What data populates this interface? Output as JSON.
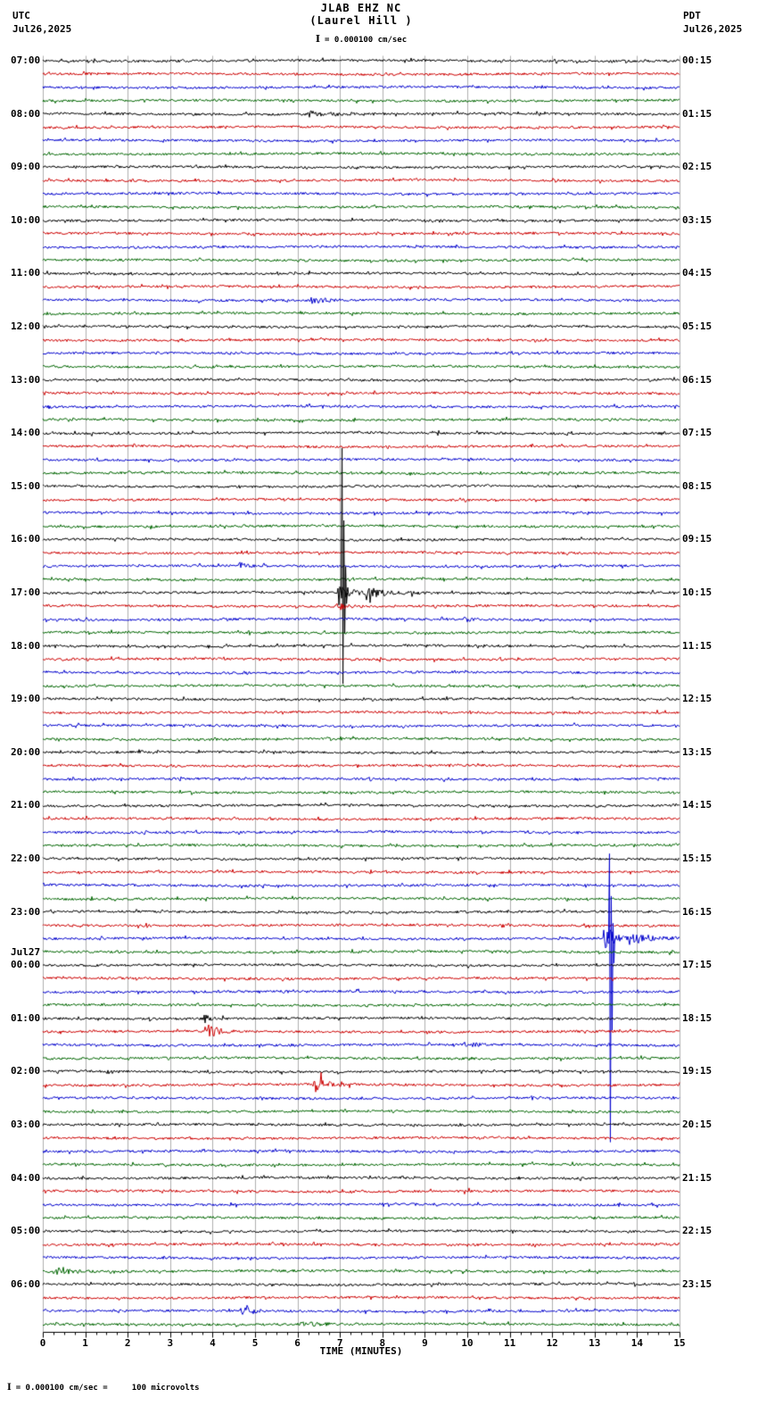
{
  "header": {
    "title": "JLAB EHZ NC",
    "subtitle": "(Laurel Hill )",
    "scale_label": "= 0.000100 cm/sec",
    "left_tz": "UTC",
    "left_date": "Jul26,2025",
    "right_tz": "PDT",
    "right_date": "Jul26,2025"
  },
  "footer": {
    "calibration": "= 0.000100 cm/sec =     100 microvolts"
  },
  "icons": {
    "scale_bar_glyph": "I"
  },
  "chart_data": {
    "type": "line",
    "subtype": "seismogram-helicorder",
    "station": "JLAB EHZ NC",
    "station_location": "(Laurel Hill )",
    "xlabel": "TIME (MINUTES)",
    "x_min": 0,
    "x_max": 15,
    "x_ticks": [
      "0",
      "1",
      "2",
      "3",
      "4",
      "5",
      "6",
      "7",
      "8",
      "9",
      "10",
      "11",
      "12",
      "13",
      "14",
      "15"
    ],
    "rows": 96,
    "minutes_per_row": 15,
    "grid": true,
    "grid_color": "#9a9a9a",
    "trace_colors": [
      "#000000",
      "#cc0000",
      "#0000cc",
      "#006600"
    ],
    "noise_amp": 1.3,
    "left_labels": [
      {
        "row": 0,
        "label": "07:00"
      },
      {
        "row": 4,
        "label": "08:00"
      },
      {
        "row": 8,
        "label": "09:00"
      },
      {
        "row": 12,
        "label": "10:00"
      },
      {
        "row": 16,
        "label": "11:00"
      },
      {
        "row": 20,
        "label": "12:00"
      },
      {
        "row": 24,
        "label": "13:00"
      },
      {
        "row": 28,
        "label": "14:00"
      },
      {
        "row": 32,
        "label": "15:00"
      },
      {
        "row": 36,
        "label": "16:00"
      },
      {
        "row": 40,
        "label": "17:00"
      },
      {
        "row": 44,
        "label": "18:00"
      },
      {
        "row": 48,
        "label": "19:00"
      },
      {
        "row": 52,
        "label": "20:00"
      },
      {
        "row": 56,
        "label": "21:00"
      },
      {
        "row": 60,
        "label": "22:00"
      },
      {
        "row": 64,
        "label": "23:00"
      },
      {
        "row": 68,
        "label": "00:00",
        "prefix": "Jul27"
      },
      {
        "row": 72,
        "label": "01:00"
      },
      {
        "row": 76,
        "label": "02:00"
      },
      {
        "row": 80,
        "label": "03:00"
      },
      {
        "row": 84,
        "label": "04:00"
      },
      {
        "row": 88,
        "label": "05:00"
      },
      {
        "row": 92,
        "label": "06:00"
      }
    ],
    "right_labels": [
      {
        "row": 0,
        "label": "00:15"
      },
      {
        "row": 4,
        "label": "01:15"
      },
      {
        "row": 8,
        "label": "02:15"
      },
      {
        "row": 12,
        "label": "03:15"
      },
      {
        "row": 16,
        "label": "04:15"
      },
      {
        "row": 20,
        "label": "05:15"
      },
      {
        "row": 24,
        "label": "06:15"
      },
      {
        "row": 28,
        "label": "07:15"
      },
      {
        "row": 32,
        "label": "08:15"
      },
      {
        "row": 36,
        "label": "09:15"
      },
      {
        "row": 40,
        "label": "10:15"
      },
      {
        "row": 44,
        "label": "11:15"
      },
      {
        "row": 48,
        "label": "12:15"
      },
      {
        "row": 52,
        "label": "13:15"
      },
      {
        "row": 56,
        "label": "14:15"
      },
      {
        "row": 60,
        "label": "15:15"
      },
      {
        "row": 64,
        "label": "16:15"
      },
      {
        "row": 68,
        "label": "17:15"
      },
      {
        "row": 72,
        "label": "18:15"
      },
      {
        "row": 76,
        "label": "19:15"
      },
      {
        "row": 80,
        "label": "20:15"
      },
      {
        "row": 84,
        "label": "21:15"
      },
      {
        "row": 88,
        "label": "22:15"
      },
      {
        "row": 92,
        "label": "23:15"
      }
    ],
    "events": [
      {
        "row": 4,
        "start_min": 6.2,
        "dur_min": 1.3,
        "amp": 4,
        "desc": "small burst on 08:00 UTC trace"
      },
      {
        "row": 18,
        "start_min": 6.3,
        "dur_min": 0.9,
        "amp": 5,
        "desc": "small burst on 11:30 UTC trace"
      },
      {
        "row": 38,
        "start_min": 4.6,
        "dur_min": 0.8,
        "amp": 3.5,
        "desc": "small burst on 16:30 UTC trace"
      },
      {
        "row": 40,
        "start_min": 6.95,
        "dur_min": 0.6,
        "amp": 22,
        "spike": {
          "min": 7.05,
          "up": 162,
          "down": 102
        },
        "desc": "large event ~17:07 UTC, clipped spike spans adjacent rows"
      },
      {
        "row": 40,
        "start_min": 7.55,
        "dur_min": 1.6,
        "amp": 7,
        "desc": "coda of large 17:07 event"
      },
      {
        "row": 41,
        "start_min": 6.9,
        "dur_min": 0.8,
        "amp": 4.5,
        "desc": "event energy on 17:15 trace"
      },
      {
        "row": 42,
        "start_min": 9.9,
        "dur_min": 0.5,
        "amp": 3,
        "desc": "minor burst 17:30 trace"
      },
      {
        "row": 65,
        "start_min": 2.4,
        "dur_min": 0.4,
        "amp": 3,
        "desc": "minor burst 23:15 trace"
      },
      {
        "row": 66,
        "start_min": 13.2,
        "dur_min": 0.55,
        "amp": 26,
        "spike": {
          "min": 13.35,
          "up": 95,
          "down": 228
        },
        "desc": "large event ~23:43 UTC, clipped spike spans adjacent rows"
      },
      {
        "row": 66,
        "start_min": 13.75,
        "dur_min": 1.25,
        "amp": 9,
        "desc": "coda of large 23:43 event"
      },
      {
        "row": 72,
        "start_min": 3.75,
        "dur_min": 0.5,
        "amp": 6,
        "desc": "burst on 01:00 UTC trace"
      },
      {
        "row": 73,
        "start_min": 3.8,
        "dur_min": 0.7,
        "amp": 13,
        "desc": "burst on 01:15 UTC trace"
      },
      {
        "row": 74,
        "start_min": 10.1,
        "dur_min": 0.4,
        "amp": 3.5,
        "desc": "minor burst 01:30 trace"
      },
      {
        "row": 77,
        "start_min": 6.35,
        "dur_min": 0.9,
        "amp": 10,
        "desc": "burst on 02:15 UTC trace"
      },
      {
        "row": 85,
        "start_min": 9.9,
        "dur_min": 0.4,
        "amp": 3,
        "desc": "minor burst 04:15 trace"
      },
      {
        "row": 91,
        "start_min": 0.3,
        "dur_min": 1.0,
        "amp": 4.5,
        "desc": "burst on 05:45 UTC trace"
      },
      {
        "row": 94,
        "start_min": 4.65,
        "dur_min": 0.6,
        "amp": 12,
        "desc": "burst on 06:30 UTC trace"
      },
      {
        "row": 95,
        "start_min": 6.0,
        "dur_min": 1.6,
        "amp": 2.5,
        "desc": "elevated noise on 06:45 trace"
      }
    ]
  }
}
